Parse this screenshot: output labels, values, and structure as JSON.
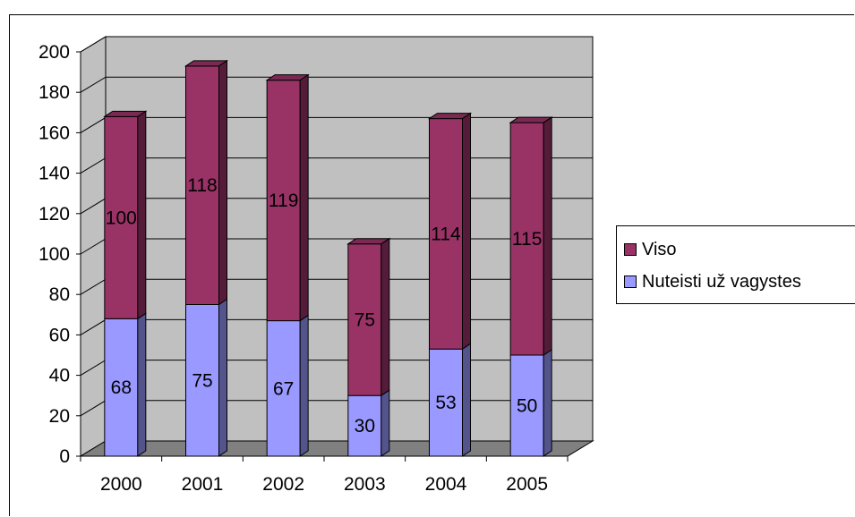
{
  "chart_data": {
    "type": "bar",
    "stacked": true,
    "three_d": true,
    "categories": [
      "2000",
      "2001",
      "2002",
      "2003",
      "2004",
      "2005"
    ],
    "series": [
      {
        "name": "Nuteisti už vagystes",
        "values": [
          68,
          75,
          67,
          30,
          53,
          50
        ],
        "color": "#9999FF"
      },
      {
        "name": "Viso",
        "values": [
          100,
          118,
          119,
          75,
          114,
          115
        ],
        "color": "#993366"
      }
    ],
    "title": "",
    "xlabel": "",
    "ylabel": "",
    "ylim": [
      0,
      200
    ],
    "yticks": [
      0,
      20,
      40,
      60,
      80,
      100,
      120,
      140,
      160,
      180,
      200
    ],
    "grid": true,
    "legend_position": "right",
    "colors": {
      "wall": "#C0C0C0",
      "floor": "#808080",
      "grid": "#000000"
    }
  }
}
